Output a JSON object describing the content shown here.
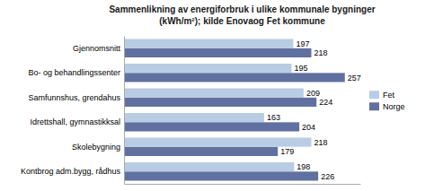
{
  "chart_data": {
    "type": "bar",
    "orientation": "horizontal",
    "title": "Sammenlikning av energiforbruk i ulike kommunale bygninger",
    "subtitle": "(kWh/m²); kilde Enovaog Fet kommune",
    "categories": [
      "Kontbrog adm.bygg, rådhus",
      "Skolebygning",
      "Idrettshall, gymnastikksal",
      "Samfunnshus, grendahus",
      "Bo- og behandlingssenter",
      "Gjennomsnitt"
    ],
    "series": [
      {
        "name": "Fet",
        "color": "#b8cce4",
        "values": [
          198,
          218,
          163,
          209,
          195,
          197
        ]
      },
      {
        "name": "Norge",
        "color": "#6070a0",
        "values": [
          226,
          179,
          204,
          224,
          257,
          218
        ]
      }
    ],
    "xlim": [
      0,
      275
    ],
    "data_labels": true,
    "tick_labels": "y",
    "legend": "right",
    "grid": false
  }
}
